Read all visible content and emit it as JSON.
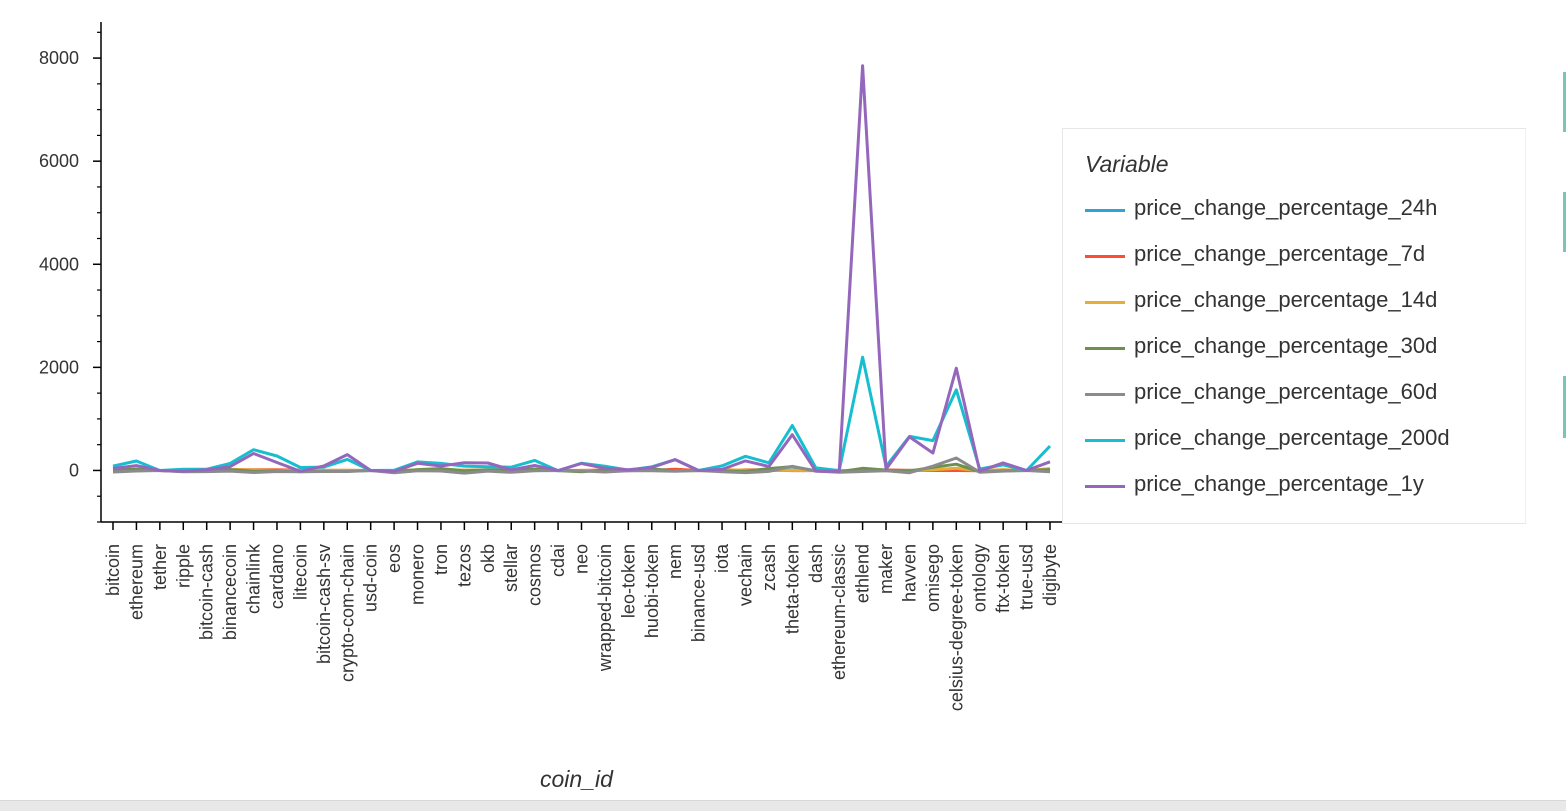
{
  "chart_data": {
    "type": "line",
    "title": "",
    "xlabel": "coin_id",
    "ylabel": "",
    "ylim": [
      -1000,
      8700
    ],
    "yticks": [
      0,
      2000,
      4000,
      6000,
      8000
    ],
    "grid": false,
    "legend_position": "right",
    "legend_title": "Variable",
    "categories": [
      "bitcoin",
      "ethereum",
      "tether",
      "ripple",
      "bitcoin-cash",
      "binancecoin",
      "chainlink",
      "cardano",
      "litecoin",
      "bitcoin-cash-sv",
      "crypto-com-chain",
      "usd-coin",
      "eos",
      "monero",
      "tron",
      "tezos",
      "okb",
      "stellar",
      "cosmos",
      "cdai",
      "neo",
      "wrapped-bitcoin",
      "leo-token",
      "huobi-token",
      "nem",
      "binance-usd",
      "iota",
      "vechain",
      "zcash",
      "theta-token",
      "dash",
      "ethereum-classic",
      "ethlend",
      "maker",
      "havven",
      "omisego",
      "celsius-degree-token",
      "ontology",
      "ftx-token",
      "true-usd",
      "digibyte"
    ],
    "series": [
      {
        "name": "price_change_percentage_24h",
        "color": "#30a2da",
        "values": [
          1,
          -1,
          0,
          0,
          3,
          2,
          2,
          2,
          -1,
          2,
          -2,
          0,
          0,
          0,
          -1,
          1,
          -1,
          0,
          0,
          -1,
          0,
          1,
          -1,
          1,
          1,
          0,
          -1,
          -1,
          0,
          6,
          4,
          2,
          -5,
          0,
          1,
          1,
          11,
          -2,
          -1,
          0,
          0
        ]
      },
      {
        "name": "price_change_percentage_7d",
        "color": "#fc4f30",
        "values": [
          7,
          10,
          0,
          -17,
          14,
          17,
          12,
          14,
          7,
          0,
          2,
          0,
          -3,
          4,
          8,
          1,
          9,
          6,
          13,
          0,
          2,
          7,
          0,
          1,
          22,
          0,
          -1,
          11,
          10,
          -3,
          -3,
          -14,
          8,
          10,
          2,
          -1,
          0,
          -5,
          11,
          0,
          20
        ]
      },
      {
        "name": "price_change_percentage_14d",
        "color": "#e5ae38",
        "values": [
          6,
          4,
          0,
          -4,
          -2,
          22,
          6,
          2,
          1,
          3,
          3,
          0,
          -1,
          9,
          22,
          5,
          7,
          0,
          7,
          0,
          -2,
          7,
          -4,
          11,
          -6,
          0,
          18,
          3,
          4,
          2,
          1,
          -3,
          7,
          2,
          -4,
          13,
          44,
          -7,
          16,
          0,
          35
        ]
      },
      {
        "name": "price_change_percentage_30d",
        "color": "#6d904f",
        "values": [
          7,
          26,
          0,
          -20,
          6,
          16,
          -17,
          -4,
          -22,
          -17,
          -17,
          0,
          -24,
          16,
          35,
          -6,
          15,
          6,
          27,
          -2,
          -24,
          8,
          -2,
          28,
          -6,
          0,
          -11,
          -15,
          35,
          75,
          -5,
          -27,
          41,
          7,
          -10,
          61,
          122,
          -27,
          -4,
          -1,
          17
        ]
      },
      {
        "name": "price_change_percentage_60d",
        "color": "#8b8b8b",
        "values": [
          -30,
          -10,
          0,
          -24,
          -22,
          -13,
          -40,
          -20,
          -25,
          -21,
          -20,
          0,
          -43,
          -6,
          -11,
          -52,
          -12,
          -35,
          -7,
          -1,
          -8,
          -30,
          -5,
          -6,
          -15,
          0,
          -27,
          -41,
          -19,
          80,
          -12,
          -33,
          -20,
          -6,
          -44,
          83,
          241,
          -33,
          -12,
          0,
          -24
        ]
      },
      {
        "name": "price_change_percentage_200d",
        "color": "#17becf",
        "values": [
          85,
          184,
          0,
          22,
          25,
          137,
          402,
          281,
          57,
          66,
          215,
          0,
          3,
          166,
          136,
          85,
          70,
          63,
          195,
          -5,
          140,
          82,
          7,
          71,
          208,
          0,
          89,
          275,
          149,
          872,
          50,
          -2,
          2197,
          79,
          660,
          579,
          1565,
          28,
          107,
          -1,
          472
        ]
      },
      {
        "name": "price_change_percentage_1y",
        "color": "#9467bd",
        "values": [
          38,
          94,
          -1,
          -17,
          12,
          75,
          329,
          155,
          -17,
          87,
          307,
          0,
          -19,
          138,
          86,
          151,
          144,
          12,
          97,
          -1,
          134,
          41,
          15,
          57,
          210,
          0,
          21,
          186,
          77,
          694,
          -13,
          -18,
          7852,
          25,
          650,
          339,
          1983,
          -13,
          147,
          -1,
          168
        ]
      }
    ]
  }
}
